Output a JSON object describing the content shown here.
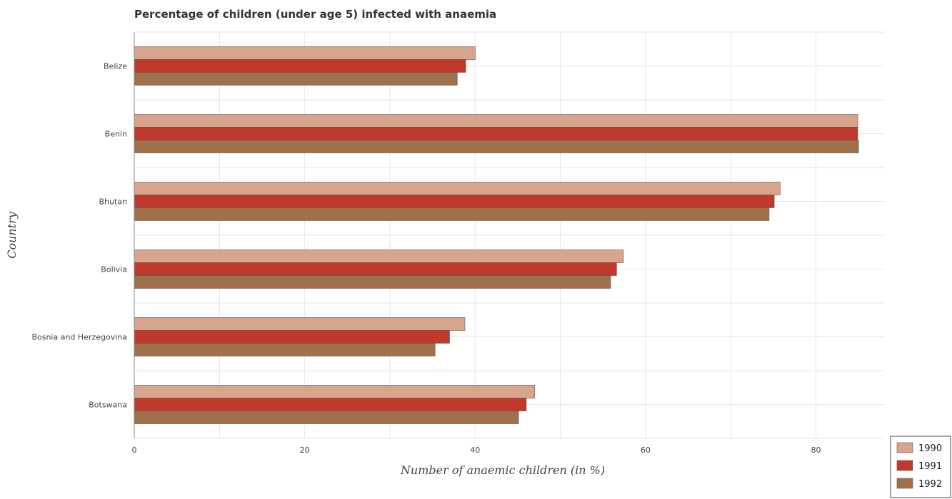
{
  "colors": {
    "1990": "#d8a48b",
    "1991": "#c0392b",
    "1992": "#a0704a",
    "grid": "#e6e6e6",
    "axis": "#888888"
  },
  "chart_data": {
    "type": "bar",
    "orientation": "horizontal",
    "title": "Percentage of children (under age 5) infected with anaemia",
    "xlabel": "Number of anaemic children (in %)",
    "ylabel": "Country",
    "xlim": [
      0,
      88
    ],
    "x_ticks": [
      0,
      20,
      40,
      60,
      80
    ],
    "x_tick_labels": [
      "0",
      "20",
      "40",
      "60",
      "80"
    ],
    "grid": true,
    "legend_position": "bottom-right",
    "categories": [
      "Belize",
      "Benin",
      "Bhutan",
      "Bolivia",
      "Bosnia and Herzegovina",
      "Botswana"
    ],
    "series": [
      {
        "name": "1990",
        "values": [
          40.0,
          84.9,
          75.8,
          57.4,
          38.8,
          47.0
        ]
      },
      {
        "name": "1991",
        "values": [
          38.9,
          84.9,
          75.1,
          56.6,
          37.0,
          46.0
        ]
      },
      {
        "name": "1992",
        "values": [
          37.9,
          85.0,
          74.5,
          55.9,
          35.3,
          45.1
        ]
      }
    ]
  }
}
